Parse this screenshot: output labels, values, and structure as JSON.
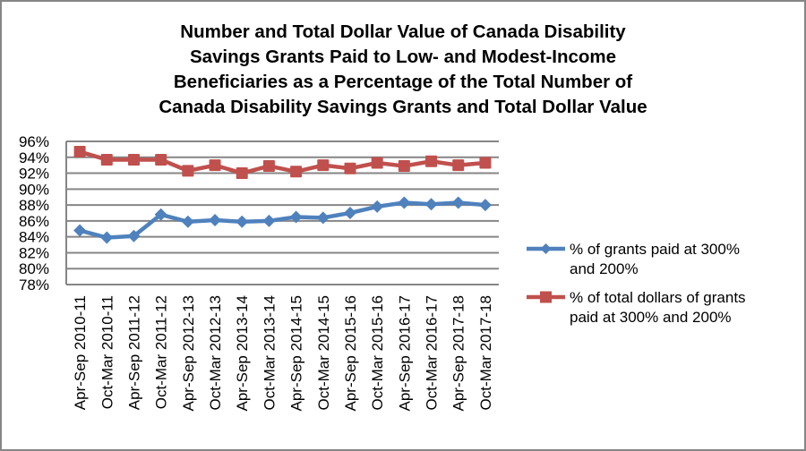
{
  "chart_data": {
    "type": "line",
    "title_lines": [
      "Number and Total Dollar Value of Canada Disability",
      "Savings Grants Paid to Low- and Modest-Income",
      "Beneficiaries as a Percentage of the Total Number of",
      "Canada Disability Savings Grants and Total Dollar Value"
    ],
    "title": "Number and Total Dollar Value of Canada Disability Savings Grants Paid to Low- and Modest-Income Beneficiaries as a Percentage of the Total Number of Canada Disability Savings Grants and Total Dollar Value",
    "xlabel": "",
    "ylabel": "",
    "categories": [
      "Apr-Sep 2010-11",
      "Oct-Mar 2010-11",
      "Apr-Sep 2011-12",
      "Oct-Mar 2011-12",
      "Apr-Sep 2012-13",
      "Oct-Mar 2012-13",
      "Apr-Sep 2013-14",
      "Oct-Mar 2013-14",
      "Apr-Sep 2014-15",
      "Oct-Mar 2014-15",
      "Apr-Sep 2015-16",
      "Oct-Mar 2015-16",
      "Apr-Sep 2016-17",
      "Oct-Mar 2016-17",
      "Apr-Sep 2017-18",
      "Oct-Mar 2017-18"
    ],
    "ylim": [
      78,
      96
    ],
    "yticks": [
      78,
      80,
      82,
      84,
      86,
      88,
      90,
      92,
      94,
      96
    ],
    "ytick_labels": [
      "78%",
      "80%",
      "82%",
      "84%",
      "86%",
      "88%",
      "90%",
      "92%",
      "94%",
      "96%"
    ],
    "grid": true,
    "legend_position": "right",
    "series": [
      {
        "name": "% of grants paid at 300% and 200%",
        "legend_lines": [
          "% of grants paid at 300%",
          "and 200%"
        ],
        "color": "#4F81BD",
        "marker": "diamond",
        "values": [
          84.8,
          83.9,
          84.1,
          86.8,
          85.9,
          86.1,
          85.9,
          86.0,
          86.5,
          86.4,
          87.0,
          87.8,
          88.3,
          88.1,
          88.3,
          88.0
        ]
      },
      {
        "name": "% of total dollars of grants paid at 300% and 200%",
        "legend_lines": [
          "% of total dollars of grants",
          "paid at 300% and 200%"
        ],
        "color": "#C0504D",
        "marker": "square",
        "values": [
          94.7,
          93.7,
          93.7,
          93.7,
          92.3,
          93.0,
          92.0,
          92.9,
          92.2,
          93.0,
          92.6,
          93.3,
          92.9,
          93.5,
          93.0,
          93.3
        ]
      }
    ]
  }
}
